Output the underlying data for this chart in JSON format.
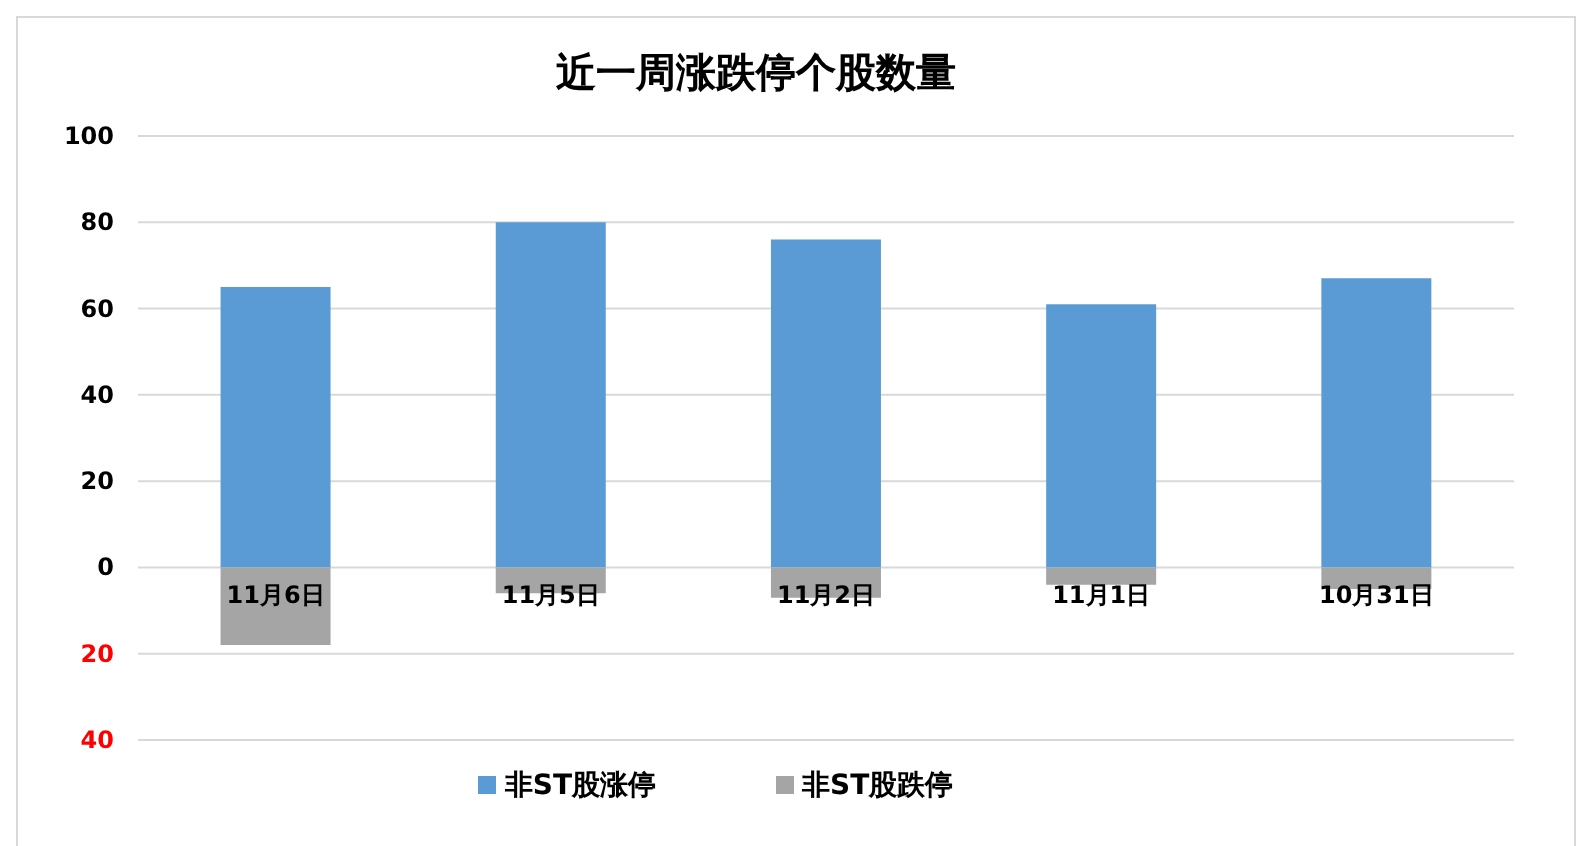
{
  "chart_data": {
    "type": "bar",
    "title": "近一周涨跌停个股数量",
    "categories": [
      "11月6日",
      "11月5日",
      "11月2日",
      "11月1日",
      "10月31日"
    ],
    "series": [
      {
        "name": "非ST股涨停",
        "color": "#5b9bd5",
        "values": [
          65,
          80,
          76,
          61,
          67
        ]
      },
      {
        "name": "非ST股跌停",
        "color": "#a5a5a5",
        "values": [
          -18,
          -6,
          -7,
          -4,
          -5
        ]
      }
    ],
    "stacked": true,
    "ylim": [
      -40,
      100
    ],
    "yticks": [
      100,
      80,
      60,
      40,
      20,
      0,
      {
        "value": -20,
        "label": "20"
      },
      {
        "value": -40,
        "label": "40"
      }
    ],
    "grid": "y",
    "legend": "bottom"
  }
}
